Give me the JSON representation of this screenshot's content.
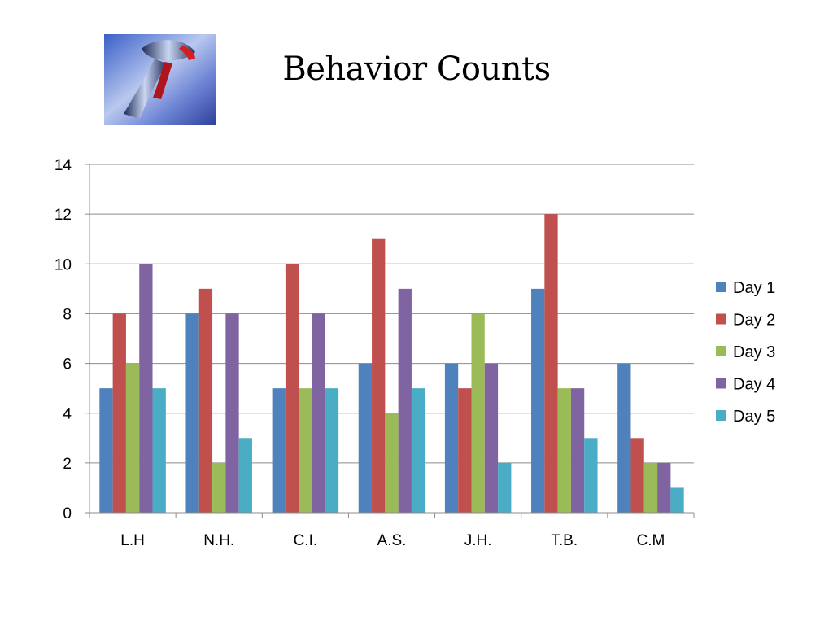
{
  "slide": {
    "title": "Behavior Counts",
    "logo_icon": "hammer-icon"
  },
  "chart_data": {
    "type": "bar",
    "title": "",
    "xlabel": "",
    "ylabel": "",
    "ylim": [
      0,
      14
    ],
    "yticks": [
      0,
      2,
      4,
      6,
      8,
      10,
      12,
      14
    ],
    "grid": true,
    "legend_position": "right",
    "categories": [
      "L.H",
      "N.H.",
      "C.I.",
      "A.S.",
      "J.H.",
      "T.B.",
      "C.M"
    ],
    "series": [
      {
        "name": "Day 1",
        "color": "#4F81BD",
        "values": [
          5,
          8,
          5,
          6,
          6,
          9,
          6
        ]
      },
      {
        "name": "Day 2",
        "color": "#C0504D",
        "values": [
          8,
          9,
          10,
          11,
          5,
          12,
          3
        ]
      },
      {
        "name": "Day 3",
        "color": "#9BBB59",
        "values": [
          6,
          2,
          5,
          4,
          8,
          5,
          2
        ]
      },
      {
        "name": "Day 4",
        "color": "#8064A2",
        "values": [
          10,
          8,
          8,
          9,
          6,
          5,
          2
        ]
      },
      {
        "name": "Day 5",
        "color": "#4BACC6",
        "values": [
          5,
          3,
          5,
          5,
          2,
          3,
          1
        ]
      }
    ]
  }
}
